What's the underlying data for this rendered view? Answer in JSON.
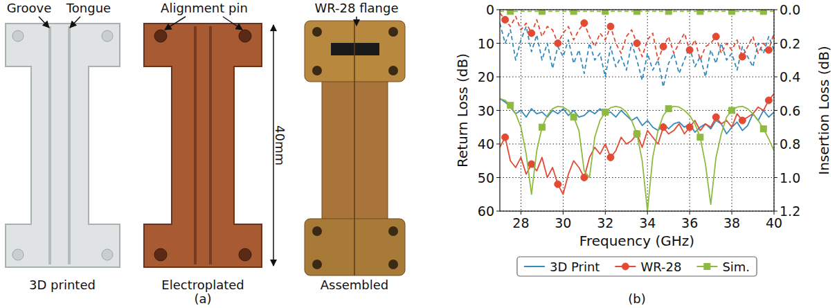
{
  "figure": {
    "panel_a": {
      "callouts": {
        "groove": "Groove",
        "tongue": "Tongue",
        "alignment_pin": "Alignment pin",
        "flange": "WR-28 flange"
      },
      "length": "40mm",
      "captions": [
        "3D printed",
        "Electroplated",
        "Assembled"
      ],
      "panel_label": "(a)"
    },
    "panel_b_label": "(b)"
  },
  "chart_data": {
    "type": "line",
    "x_label": "Frequency (GHz)",
    "y_label": "Return Loss (dB)",
    "y2_label": "Insertion Loss (dB)",
    "x": [
      27,
      27.25,
      27.5,
      27.75,
      28,
      28.25,
      28.5,
      28.75,
      29,
      29.25,
      29.5,
      29.75,
      30,
      30.25,
      30.5,
      30.75,
      31,
      31.25,
      31.5,
      31.75,
      32,
      32.25,
      32.5,
      32.75,
      33,
      33.25,
      33.5,
      33.75,
      34,
      34.25,
      34.5,
      34.75,
      35,
      35.25,
      35.5,
      35.75,
      36,
      36.25,
      36.5,
      36.75,
      37,
      37.25,
      37.5,
      37.75,
      38,
      38.25,
      38.5,
      38.75,
      39,
      39.25,
      39.5,
      39.75,
      40
    ],
    "xlim": [
      27,
      40
    ],
    "xticks": [
      28,
      30,
      32,
      34,
      36,
      38,
      40
    ],
    "ylim": [
      60,
      0
    ],
    "yticks": [
      0,
      10,
      20,
      30,
      40,
      50,
      60
    ],
    "y2lim": [
      1.2,
      0
    ],
    "y2ticks": [
      {
        "value": 0,
        "label": "0.0"
      },
      0.2,
      0.4,
      0.6,
      0.8,
      {
        "value": 1,
        "label": "1.0"
      },
      1.2
    ],
    "grid": true,
    "legend": "below",
    "series": [
      {
        "name": "3D Print",
        "color": "#348ABD",
        "line_style": "solid",
        "marker": "none",
        "values": [
          26.5,
          27.5,
          29,
          31,
          30,
          32,
          29.5,
          31,
          30.5,
          32,
          30,
          31,
          29.5,
          31.5,
          30,
          32,
          31.5,
          30,
          31,
          29.5,
          31,
          30.5,
          32,
          30,
          31.5,
          33,
          32,
          34.5,
          33,
          35,
          36,
          34,
          35.5,
          34,
          33.5,
          35,
          34,
          36.5,
          35,
          34,
          35.5,
          33,
          34,
          37,
          35,
          33.5,
          36,
          34.5,
          31,
          33,
          30,
          32,
          30.5
        ]
      },
      {
        "name": "WR-28",
        "color": "#E24A33",
        "line_style": "solid",
        "marker": "circle",
        "values": [
          41,
          38,
          45,
          47,
          44,
          49,
          46,
          48,
          44,
          50,
          47,
          52,
          55,
          49,
          45,
          47,
          50,
          44,
          41,
          43,
          40,
          44,
          42,
          38,
          40,
          39,
          37,
          41,
          36,
          38,
          40,
          35,
          37,
          36,
          34,
          37,
          35,
          33,
          36,
          34,
          35,
          32,
          34,
          33,
          35,
          31,
          33,
          32,
          31,
          29,
          30,
          27,
          25
        ]
      },
      {
        "name": "Sim.",
        "color": "#8EBA42",
        "line_style": "solid",
        "marker": "square",
        "values": [
          26.5,
          27,
          28.5,
          31,
          35,
          43,
          55,
          42,
          35,
          31.5,
          29.5,
          28.8,
          29,
          30,
          32,
          36,
          48,
          50,
          38,
          33,
          30.5,
          29.2,
          28.8,
          29.2,
          30.5,
          33,
          37,
          45,
          60,
          44,
          36,
          31.5,
          29.5,
          28.8,
          29,
          30,
          31.5,
          34,
          38,
          46,
          58,
          44,
          37,
          32,
          30,
          29,
          28.8,
          29.5,
          31,
          33,
          35.5,
          38.5,
          42
        ]
      },
      {
        "name": "3D Print",
        "color": "#348ABD",
        "line_style": "dashed",
        "marker": "none",
        "axis": "y2",
        "values": [
          0.08,
          0.2,
          0.12,
          0.3,
          0.18,
          0.1,
          0.25,
          0.15,
          0.3,
          0.2,
          0.35,
          0.22,
          0.28,
          0.18,
          0.32,
          0.24,
          0.38,
          0.2,
          0.3,
          0.26,
          0.4,
          0.22,
          0.34,
          0.28,
          0.36,
          0.2,
          0.3,
          0.42,
          0.26,
          0.36,
          0.3,
          0.46,
          0.32,
          0.26,
          0.38,
          0.3,
          0.22,
          0.34,
          0.28,
          0.4,
          0.24,
          0.32,
          0.2,
          0.3,
          0.26,
          0.36,
          0.22,
          0.28,
          0.34,
          0.2,
          0.26,
          0.16,
          0.24
        ]
      },
      {
        "name": "WR-28",
        "color": "#E24A33",
        "line_style": "dashed",
        "marker": "circle",
        "axis": "y2",
        "values": [
          0.02,
          0.06,
          0.1,
          0.04,
          0.12,
          0.08,
          0.14,
          0.06,
          0.16,
          0.1,
          0.12,
          0.2,
          0.14,
          0.1,
          0.18,
          0.12,
          0.08,
          0.16,
          0.22,
          0.14,
          0.18,
          0.1,
          0.2,
          0.26,
          0.16,
          0.12,
          0.2,
          0.28,
          0.18,
          0.14,
          0.3,
          0.22,
          0.16,
          0.26,
          0.2,
          0.14,
          0.24,
          0.18,
          0.3,
          0.22,
          0.2,
          0.16,
          0.26,
          0.2,
          0.24,
          0.18,
          0.28,
          0.22,
          0.16,
          0.26,
          0.2,
          0.24,
          0.14
        ]
      },
      {
        "name": "Sim.",
        "color": "#8EBA42",
        "line_style": "dashed",
        "marker": "square",
        "axis": "y2",
        "values": [
          0.01,
          0.01,
          0.01,
          0.01,
          0.01,
          0.01,
          0.01,
          0.01,
          0.01,
          0.01,
          0.01,
          0.01,
          0.01,
          0.01,
          0.01,
          0.01,
          0.01,
          0.01,
          0.01,
          0.01,
          0.01,
          0.01,
          0.01,
          0.01,
          0.01,
          0.01,
          0.01,
          0.01,
          0.01,
          0.01,
          0.01,
          0.01,
          0.01,
          0.01,
          0.01,
          0.01,
          0.01,
          0.01,
          0.01,
          0.01,
          0.01,
          0.01,
          0.01,
          0.01,
          0.01,
          0.01,
          0.01,
          0.01,
          0.01,
          0.01,
          0.01,
          0.01,
          0.01
        ]
      }
    ]
  }
}
